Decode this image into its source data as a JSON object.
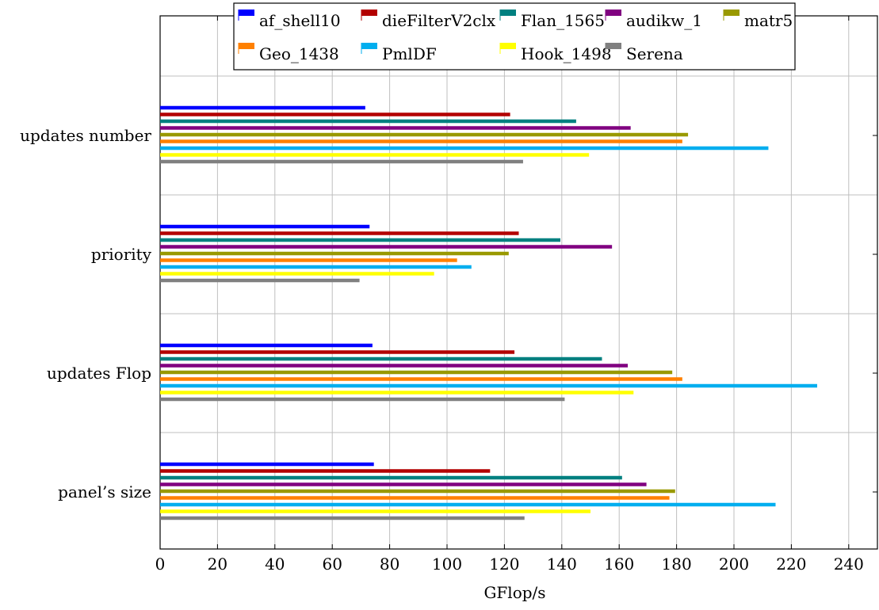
{
  "chart_data": {
    "type": "bar",
    "orientation": "horizontal",
    "categories": [
      "updates number",
      "priority",
      "updates Flop",
      "panel’s size"
    ],
    "series": [
      {
        "name": "af_shell10",
        "color": "#0000ff",
        "values": [
          71.5,
          73,
          74,
          74.5
        ]
      },
      {
        "name": "dieFilterV2clx",
        "color": "#b30000",
        "values": [
          122,
          125,
          123.5,
          115
        ]
      },
      {
        "name": "Flan_1565",
        "color": "#008080",
        "values": [
          145,
          139.5,
          154,
          161
        ]
      },
      {
        "name": "audikw_1",
        "color": "#800080",
        "values": [
          164,
          157.5,
          163,
          169.5
        ]
      },
      {
        "name": "matr5",
        "color": "#999900",
        "values": [
          184,
          121.5,
          178.5,
          179.5
        ]
      },
      {
        "name": "Geo_1438",
        "color": "#ff8000",
        "values": [
          182,
          103.5,
          182,
          177.5
        ]
      },
      {
        "name": "PmlDF",
        "color": "#00aeef",
        "values": [
          212,
          108.5,
          229,
          214.5
        ]
      },
      {
        "name": "Hook_1498",
        "color": "#ffff00",
        "values": [
          149.5,
          95.5,
          165,
          150
        ]
      },
      {
        "name": "Serena",
        "color": "#808080",
        "values": [
          126.5,
          69.5,
          141,
          127
        ]
      }
    ],
    "xlabel": "GFlop/s",
    "ylabel": "",
    "xlim": [
      0,
      250
    ],
    "xticks": [
      0,
      20,
      40,
      60,
      80,
      100,
      120,
      140,
      160,
      180,
      200,
      220,
      240
    ],
    "grid": true,
    "legend_position": "top"
  }
}
